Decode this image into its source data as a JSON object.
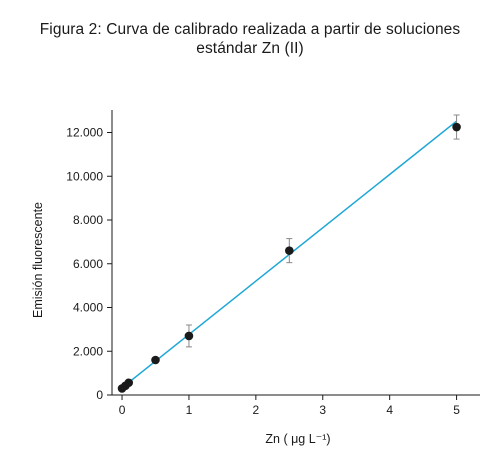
{
  "title_line1": "Figura 2: Curva de calibrado realizada a partir de soluciones",
  "title_line2": "estándar Zn (II)",
  "chart_data": {
    "type": "scatter",
    "xlabel": "Zn ( μg L⁻¹)",
    "ylabel": "Emisión fluorescente",
    "xlim": [
      -0.15,
      5.35
    ],
    "ylim": [
      0,
      12800
    ],
    "x_ticks": [
      0,
      1,
      2,
      3,
      4,
      5
    ],
    "y_ticks": [
      0,
      2000,
      4000,
      6000,
      8000,
      10000,
      12000
    ],
    "y_tick_labels": [
      "0",
      "2.000",
      "4.000",
      "6.000",
      "8.000",
      "10.000",
      "12.000"
    ],
    "grid": false,
    "points": [
      {
        "x": 0.0,
        "y": 300,
        "err": 0
      },
      {
        "x": 0.05,
        "y": 420,
        "err": 0
      },
      {
        "x": 0.1,
        "y": 560,
        "err": 0
      },
      {
        "x": 0.5,
        "y": 1600,
        "err": 0
      },
      {
        "x": 1.0,
        "y": 2700,
        "err": 500
      },
      {
        "x": 2.5,
        "y": 6600,
        "err": 550
      },
      {
        "x": 5.0,
        "y": 12250,
        "err": 550
      }
    ],
    "fit_line": {
      "x": [
        0.0,
        5.0
      ],
      "y": [
        330,
        12520
      ]
    },
    "colors": {
      "line": "#1ea7d6",
      "points": "#1a1a1a",
      "error_bars": "#888888"
    }
  }
}
